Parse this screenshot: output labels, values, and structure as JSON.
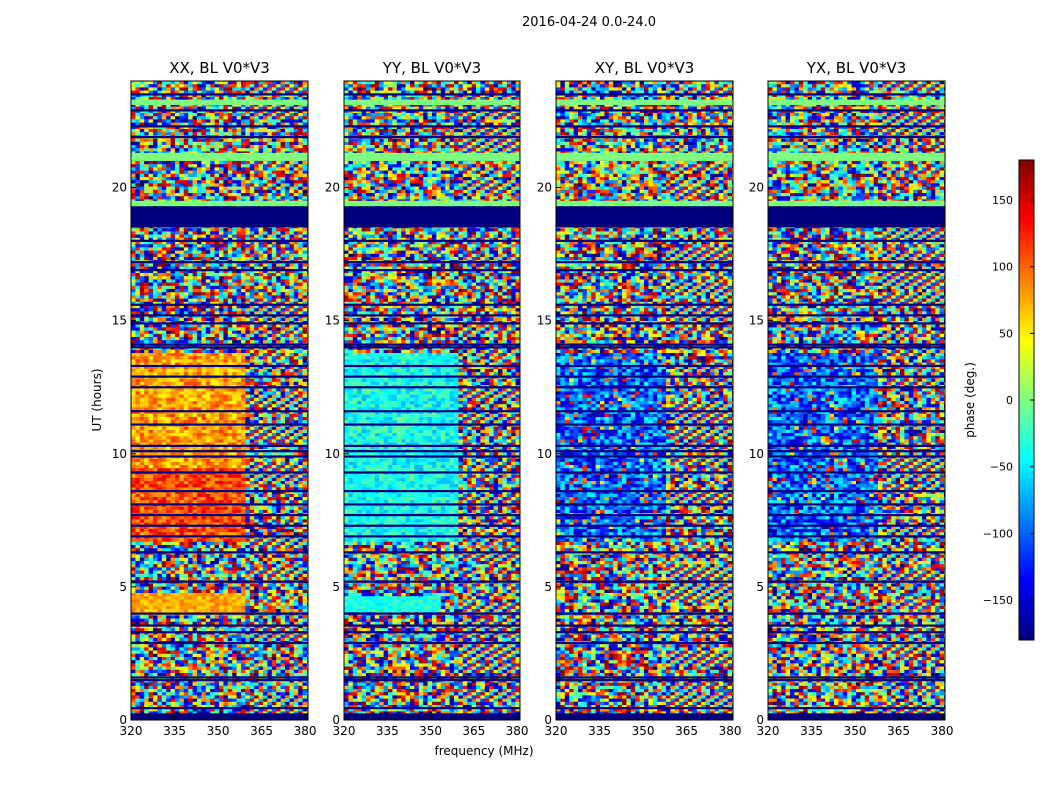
{
  "chart_data": {
    "type": "heatmap",
    "suptitle": "2016-04-24 0.0-24.0",
    "xlabel": "frequency (MHz)",
    "ylabel": "UT (hours)",
    "xlim": [
      320,
      381
    ],
    "ylim": [
      0,
      24
    ],
    "xticks": [
      "320",
      "335",
      "350",
      "365",
      "380"
    ],
    "yticks": [
      "0",
      "5",
      "10",
      "15",
      "20"
    ],
    "panels": [
      {
        "title": "XX, BL V0*V3",
        "pol": "XX"
      },
      {
        "title": "YY, BL V0*V3",
        "pol": "YY"
      },
      {
        "title": "XY, BL V0*V3",
        "pol": "XY"
      },
      {
        "title": "YX, BL V0*V3",
        "pol": "YX"
      }
    ],
    "colorbar": {
      "label": "phase (deg.)",
      "range": [
        -180,
        180
      ],
      "ticks": [
        "150",
        "100",
        "50",
        "0",
        "−50",
        "−100",
        "−150"
      ],
      "colormap": "jet",
      "colors": [
        "#00007f",
        "#0000ff",
        "#007fff",
        "#00ffff",
        "#7fff7f",
        "#ffff00",
        "#ff7f00",
        "#ff0000",
        "#7f0000"
      ]
    }
  }
}
